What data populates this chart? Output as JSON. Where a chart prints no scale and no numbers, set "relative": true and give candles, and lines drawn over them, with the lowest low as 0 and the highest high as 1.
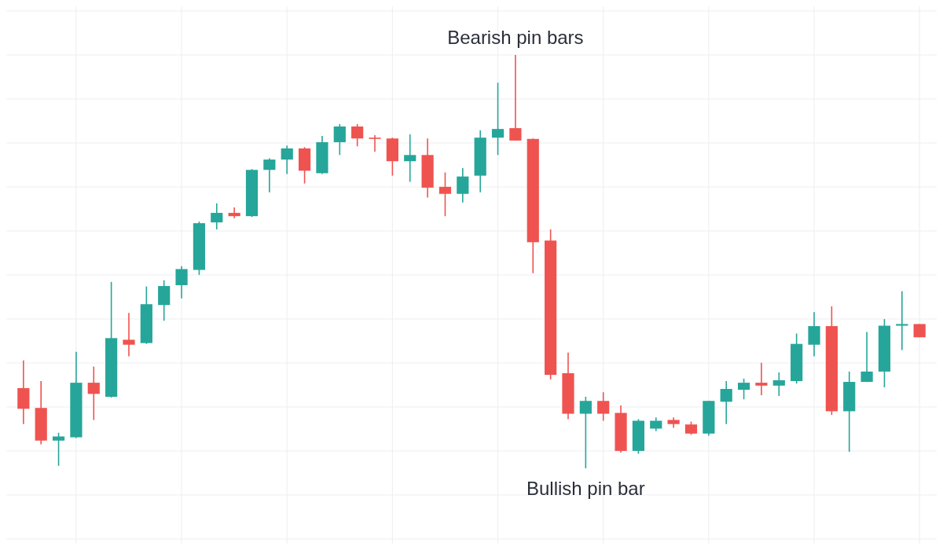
{
  "chart_data": {
    "type": "candlestick",
    "relative": true,
    "grid": true,
    "annotations": [
      "Bearish pin bars",
      "Bullish pin bar"
    ],
    "categories": [
      null,
      null,
      null,
      null,
      null,
      null,
      null,
      null,
      null,
      null,
      null,
      null,
      null,
      null,
      null,
      null,
      null,
      null,
      null,
      null,
      null,
      null,
      null,
      null,
      null,
      null,
      null,
      null,
      null,
      null,
      null,
      null,
      null,
      null,
      null,
      null,
      null,
      null,
      null,
      null,
      null,
      null,
      null,
      null,
      null,
      null,
      null,
      null,
      null,
      null,
      null,
      null
    ],
    "ohlc": [
      [
        0.194,
        0.261,
        0.107,
        0.144
      ],
      [
        0.146,
        0.211,
        0.058,
        0.067
      ],
      [
        0.067,
        0.086,
        0.006,
        0.077
      ],
      [
        0.075,
        0.282,
        0.073,
        0.207
      ],
      [
        0.207,
        0.246,
        0.117,
        0.18
      ],
      [
        0.173,
        0.451,
        0.171,
        0.315
      ],
      [
        0.311,
        0.376,
        0.271,
        0.299
      ],
      [
        0.303,
        0.44,
        0.301,
        0.397
      ],
      [
        0.395,
        0.455,
        0.357,
        0.441
      ],
      [
        0.443,
        0.489,
        0.411,
        0.482
      ],
      [
        0.48,
        0.597,
        0.468,
        0.593
      ],
      [
        0.595,
        0.641,
        0.578,
        0.618
      ],
      [
        0.618,
        0.631,
        0.605,
        0.61
      ],
      [
        0.61,
        0.724,
        0.608,
        0.722
      ],
      [
        0.722,
        0.75,
        0.668,
        0.747
      ],
      [
        0.747,
        0.781,
        0.712,
        0.774
      ],
      [
        0.774,
        0.777,
        0.689,
        0.72
      ],
      [
        0.714,
        0.804,
        0.712,
        0.789
      ],
      [
        0.789,
        0.833,
        0.758,
        0.827
      ],
      [
        0.827,
        0.833,
        0.779,
        0.798
      ],
      [
        0.8,
        0.806,
        0.766,
        0.797
      ],
      [
        0.798,
        0.8,
        0.708,
        0.743
      ],
      [
        0.743,
        0.808,
        0.693,
        0.758
      ],
      [
        0.758,
        0.798,
        0.655,
        0.679
      ],
      [
        0.681,
        0.716,
        0.61,
        0.664
      ],
      [
        0.664,
        0.726,
        0.643,
        0.706
      ],
      [
        0.708,
        0.818,
        0.668,
        0.8
      ],
      [
        0.8,
        0.933,
        0.758,
        0.821
      ],
      [
        0.823,
        1,
        0.793,
        0.793
      ],
      [
        0.797,
        0.798,
        0.472,
        0.547
      ],
      [
        0.551,
        0.578,
        0.215,
        0.226
      ],
      [
        0.23,
        0.28,
        0.119,
        0.132
      ],
      [
        0.132,
        0.173,
        0,
        0.163
      ],
      [
        0.163,
        0.184,
        0.115,
        0.132
      ],
      [
        0.134,
        0.152,
        0.038,
        0.042
      ],
      [
        0.042,
        0.119,
        0.035,
        0.115
      ],
      [
        0.096,
        0.123,
        0.09,
        0.115
      ],
      [
        0.117,
        0.123,
        0.098,
        0.107
      ],
      [
        0.106,
        0.113,
        0.081,
        0.084
      ],
      [
        0.084,
        0.163,
        0.079,
        0.163
      ],
      [
        0.161,
        0.211,
        0.107,
        0.192
      ],
      [
        0.19,
        0.217,
        0.167,
        0.207
      ],
      [
        0.207,
        0.255,
        0.177,
        0.2
      ],
      [
        0.2,
        0.232,
        0.175,
        0.213
      ],
      [
        0.211,
        0.326,
        0.205,
        0.301
      ],
      [
        0.299,
        0.378,
        0.271,
        0.344
      ],
      [
        0.344,
        0.392,
        0.129,
        0.138
      ],
      [
        0.138,
        0.234,
        0.04,
        0.209
      ],
      [
        0.209,
        0.33,
        0.209,
        0.234
      ],
      [
        0.234,
        0.361,
        0.196,
        0.345
      ],
      [
        0.345,
        0.428,
        0.286,
        0.349
      ],
      [
        0.349,
        0.349,
        0.317,
        0.317
      ]
    ],
    "colors": [
      "#ef5350",
      "#ef5350",
      "#26a69a",
      "#26a69a",
      "#ef5350",
      "#26a69a",
      "#ef5350",
      "#26a69a",
      "#26a69a",
      "#26a69a",
      "#26a69a",
      "#26a69a",
      "#ef5350",
      "#26a69a",
      "#26a69a",
      "#26a69a",
      "#ef5350",
      "#26a69a",
      "#26a69a",
      "#ef5350",
      "#ef5350",
      "#ef5350",
      "#26a69a",
      "#ef5350",
      "#ef5350",
      "#26a69a",
      "#26a69a",
      "#26a69a",
      "#ef5350",
      "#ef5350",
      "#ef5350",
      "#ef5350",
      "#26a69a",
      "#ef5350",
      "#ef5350",
      "#26a69a",
      "#26a69a",
      "#ef5350",
      "#ef5350",
      "#26a69a",
      "#26a69a",
      "#26a69a",
      "#ef5350",
      "#26a69a",
      "#26a69a",
      "#26a69a",
      "#ef5350",
      "#26a69a",
      "#26a69a",
      "#26a69a",
      "#26a69a",
      "#ef5350"
    ]
  }
}
